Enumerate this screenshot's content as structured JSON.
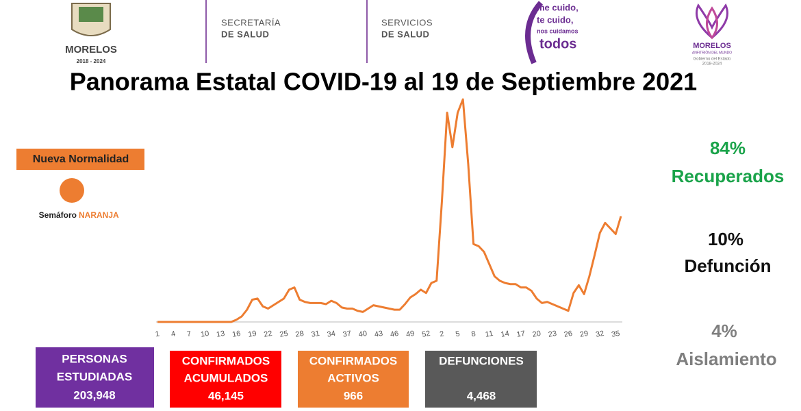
{
  "header": {
    "logo1": {
      "name": "MORELOS",
      "years": "2018 - 2024"
    },
    "secretaria": [
      "SECRETARÍA",
      "DE SALUD"
    ],
    "servicios": [
      "SERVICIOS",
      "DE SALUD"
    ],
    "slogan": [
      "me cuido,",
      "te cuido,",
      "nos cuidamos",
      "todos"
    ],
    "logo2": {
      "name": "MORELOS",
      "motto": "ANFITRIÓN DEL MUNDO",
      "gov": "Gobierno del Estado",
      "years": "2018-2024"
    }
  },
  "chart_data": {
    "type": "line",
    "title": "Panorama Estatal COVID-19 al 19 de Septiembre 2021",
    "categories": [
      "1",
      null,
      null,
      "4",
      null,
      null,
      "7",
      null,
      null,
      "10",
      null,
      null,
      "13",
      null,
      null,
      "16",
      null,
      null,
      "19",
      null,
      null,
      "22",
      null,
      null,
      "25",
      null,
      null,
      "28",
      null,
      null,
      "31",
      null,
      null,
      "34",
      null,
      null,
      "37",
      null,
      null,
      "40",
      null,
      null,
      "43",
      null,
      null,
      "46",
      null,
      null,
      "49",
      null,
      null,
      "52",
      null,
      null,
      "2",
      null,
      null,
      "5",
      null,
      null,
      "8",
      null,
      null,
      "11",
      null,
      null,
      "14",
      null,
      null,
      "17",
      null,
      null,
      "20",
      null,
      null,
      "23",
      null,
      null,
      "26",
      null,
      null,
      "29",
      null,
      null,
      "32",
      null,
      null,
      "35",
      null
    ],
    "series": [
      {
        "color": "#ed7d31",
        "values": [
          0,
          0,
          0,
          0,
          0,
          0,
          0,
          0,
          0,
          0,
          0,
          0,
          0,
          0,
          0,
          1,
          2.5,
          5.5,
          10,
          10.5,
          7,
          6,
          7.5,
          9,
          10.5,
          14.5,
          15.5,
          10,
          9,
          8.5,
          8.5,
          8.5,
          8,
          9.5,
          8.5,
          6.5,
          6,
          6,
          5,
          4.5,
          6,
          7.5,
          7,
          6.5,
          6,
          5.5,
          5.5,
          8,
          11,
          12.5,
          14.5,
          13,
          17.5,
          18.5,
          54,
          94,
          78.5,
          94,
          100,
          71,
          35,
          34,
          31.5,
          26,
          20.5,
          18.5,
          17.5,
          17,
          17,
          15.5,
          15.5,
          14,
          10.5,
          8.5,
          9,
          8,
          7,
          6,
          5,
          13,
          16.5,
          12.5,
          20.5,
          30,
          40,
          44.5,
          42,
          39.5,
          47.5
        ]
      }
    ],
    "ylim": [
      0,
      100
    ]
  },
  "status": {
    "label": "Nueva Normalidad",
    "semaforo": "Semáforo",
    "color_name": "NARANJA"
  },
  "stats": [
    {
      "value": "84%",
      "label": "Recuperados"
    },
    {
      "value": "10%",
      "label": "Defunción"
    },
    {
      "value": "4%",
      "label": "Aislamiento"
    }
  ],
  "boxes": [
    {
      "lines": [
        "PERSONAS",
        "ESTUDIADAS"
      ],
      "value": "203,948"
    },
    {
      "lines": [
        "CONFIRMADOS",
        "ACUMULADOS"
      ],
      "value": "46,145"
    },
    {
      "lines": [
        "CONFIRMADOS",
        "ACTIVOS"
      ],
      "value": "966"
    },
    {
      "lines": [
        "DEFUNCIONES"
      ],
      "value": "4,468"
    }
  ]
}
